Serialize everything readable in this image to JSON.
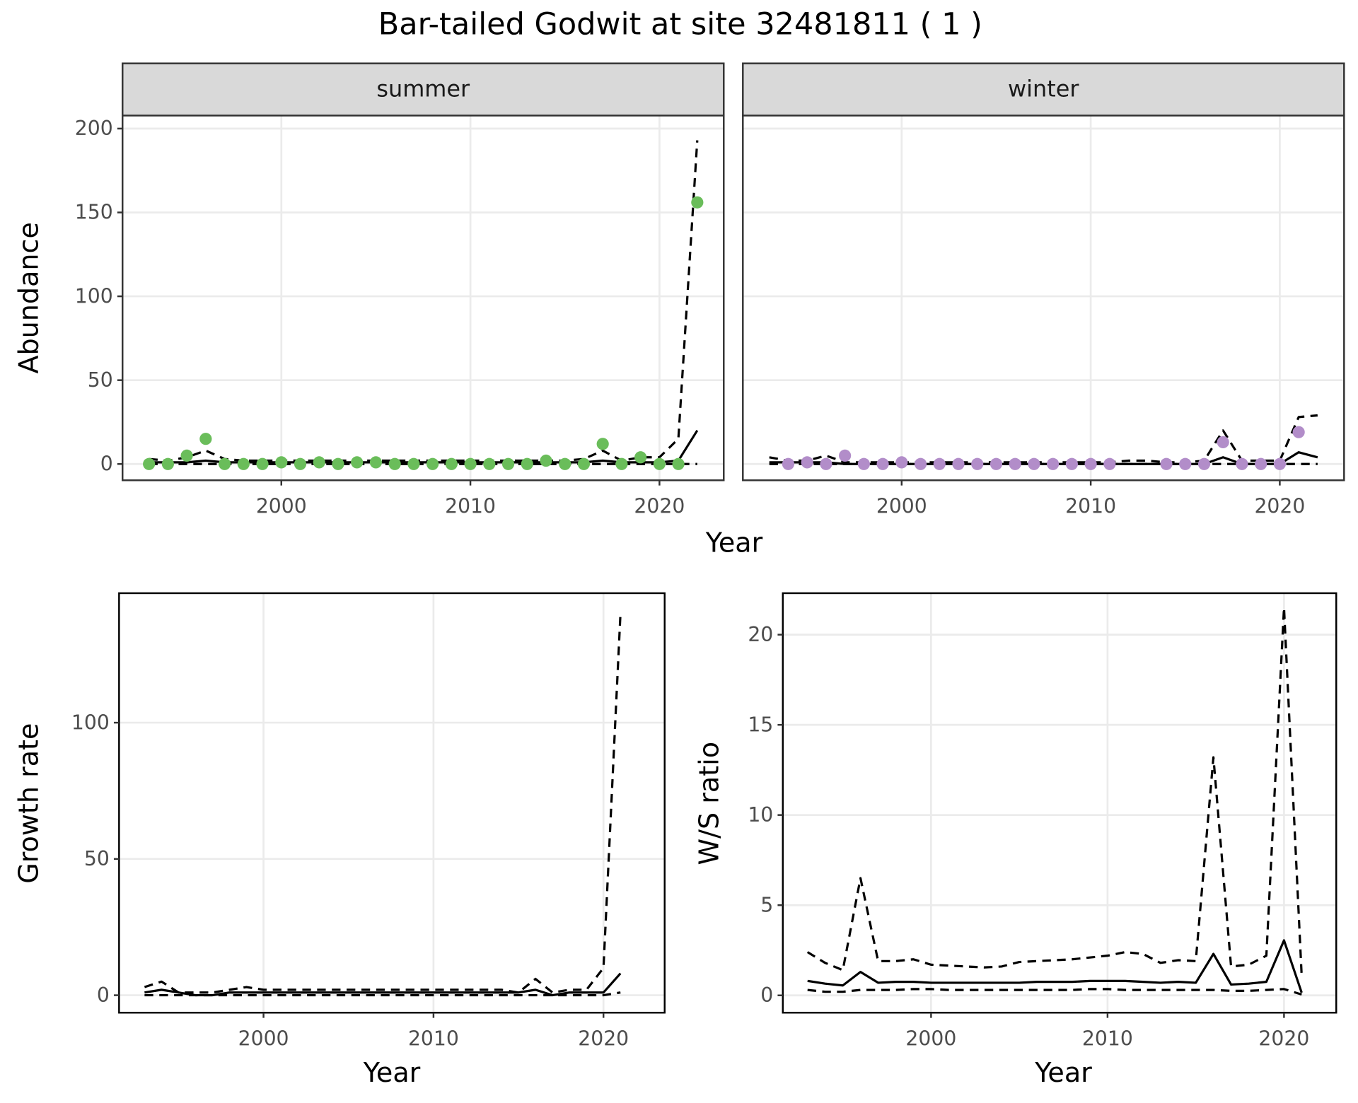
{
  "title": "Bar-tailed Godwit at site 32481811 ( 1 )",
  "chart_data": [
    {
      "type": "line",
      "title": "summer",
      "xlabel": "Year",
      "ylabel": "Abundance",
      "grid": true,
      "xlim": [
        1991.6,
        2023.4
      ],
      "ylim": [
        -9.7,
        207.8
      ],
      "xticks": [
        2000,
        2010,
        2020
      ],
      "yticks": [
        0,
        50,
        100,
        150,
        200
      ],
      "series": [
        {
          "style": "solid",
          "color": "#000000",
          "x": [
            1993,
            1994,
            1995,
            1996,
            1997,
            1998,
            1999,
            2000,
            2001,
            2002,
            2003,
            2004,
            2005,
            2006,
            2007,
            2008,
            2009,
            2010,
            2011,
            2012,
            2013,
            2014,
            2015,
            2016,
            2017,
            2018,
            2019,
            2020,
            2021,
            2022
          ],
          "values": [
            1,
            1,
            1,
            2,
            1,
            1,
            1,
            1,
            1,
            1,
            1,
            1,
            1,
            1,
            1,
            1,
            1,
            1,
            1,
            1,
            1,
            1,
            1,
            1,
            2,
            1,
            1,
            1,
            2,
            20
          ]
        },
        {
          "style": "dashed",
          "color": "#000000",
          "x": [
            1993,
            1994,
            1995,
            1996,
            1997,
            1998,
            1999,
            2000,
            2001,
            2002,
            2003,
            2004,
            2005,
            2006,
            2007,
            2008,
            2009,
            2010,
            2011,
            2012,
            2013,
            2014,
            2015,
            2016,
            2017,
            2018,
            2019,
            2020,
            2021,
            2022
          ],
          "values": [
            3,
            2,
            4,
            8,
            3,
            2,
            2,
            2,
            2,
            2,
            2,
            2,
            2,
            2,
            2,
            2,
            2,
            2,
            2,
            2,
            2,
            2,
            2,
            3,
            8,
            2,
            4,
            4,
            15,
            193
          ]
        },
        {
          "style": "dashed",
          "color": "#000000",
          "x": [
            1993,
            1994,
            1995,
            1996,
            1997,
            1998,
            1999,
            2000,
            2001,
            2002,
            2003,
            2004,
            2005,
            2006,
            2007,
            2008,
            2009,
            2010,
            2011,
            2012,
            2013,
            2014,
            2015,
            2016,
            2017,
            2018,
            2019,
            2020,
            2021,
            2022
          ],
          "values": [
            0,
            0,
            0,
            0,
            0,
            0,
            0,
            0,
            0,
            0,
            0,
            0,
            0,
            0,
            0,
            0,
            0,
            0,
            0,
            0,
            0,
            0,
            0,
            0,
            0,
            0,
            0,
            0,
            0,
            0
          ]
        },
        {
          "style": "points",
          "color": "#6abd5a",
          "x": [
            1993,
            1994,
            1995,
            1996,
            1997,
            1998,
            1999,
            2000,
            2001,
            2002,
            2003,
            2004,
            2005,
            2006,
            2007,
            2008,
            2009,
            2010,
            2011,
            2012,
            2013,
            2014,
            2015,
            2016,
            2017,
            2018,
            2019,
            2020,
            2021,
            2022
          ],
          "values": [
            0,
            0,
            5,
            15,
            0,
            0,
            0,
            1,
            0,
            1,
            0,
            1,
            1,
            0,
            0,
            0,
            0,
            0,
            0,
            0,
            0,
            2,
            0,
            0,
            12,
            0,
            4,
            0,
            0,
            156
          ]
        }
      ]
    },
    {
      "type": "line",
      "title": "winter",
      "grid": true,
      "xlim": [
        1991.6,
        2023.4
      ],
      "xticks": [
        2000,
        2010,
        2020
      ],
      "series": [
        {
          "style": "solid",
          "color": "#000000",
          "x": [
            1993,
            1994,
            1995,
            1996,
            1997,
            1998,
            1999,
            2000,
            2001,
            2002,
            2003,
            2004,
            2005,
            2006,
            2007,
            2008,
            2009,
            2010,
            2011,
            2012,
            2013,
            2014,
            2015,
            2016,
            2017,
            2018,
            2019,
            2020,
            2021,
            2022
          ],
          "values": [
            1,
            1,
            1,
            1,
            0,
            0,
            0,
            0,
            0,
            0,
            0,
            0,
            0,
            0,
            0,
            0,
            0,
            0,
            0,
            0,
            0,
            0,
            0,
            0,
            4,
            0,
            0,
            0,
            7,
            4
          ]
        },
        {
          "style": "dashed",
          "color": "#000000",
          "x": [
            1993,
            1994,
            1995,
            1996,
            1997,
            1998,
            1999,
            2000,
            2001,
            2002,
            2003,
            2004,
            2005,
            2006,
            2007,
            2008,
            2009,
            2010,
            2011,
            2012,
            2013,
            2014,
            2015,
            2016,
            2017,
            2018,
            2019,
            2020,
            2021,
            2022
          ],
          "values": [
            4,
            2,
            2,
            5,
            1,
            1,
            1,
            1,
            1,
            1,
            1,
            1,
            1,
            1,
            1,
            1,
            1,
            1,
            1,
            2,
            2,
            1,
            1,
            2,
            20,
            2,
            2,
            2,
            28,
            29
          ]
        },
        {
          "style": "dashed",
          "color": "#000000",
          "x": [
            1993,
            1994,
            1995,
            1996,
            1997,
            1998,
            1999,
            2000,
            2001,
            2002,
            2003,
            2004,
            2005,
            2006,
            2007,
            2008,
            2009,
            2010,
            2011,
            2012,
            2013,
            2014,
            2015,
            2016,
            2017,
            2018,
            2019,
            2020,
            2021,
            2022
          ],
          "values": [
            0,
            0,
            0,
            0,
            0,
            0,
            0,
            0,
            0,
            0,
            0,
            0,
            0,
            0,
            0,
            0,
            0,
            0,
            0,
            0,
            0,
            0,
            0,
            0,
            0,
            0,
            0,
            0,
            0,
            0
          ]
        },
        {
          "style": "points",
          "color": "#b28dc9",
          "x": [
            1994,
            1995,
            1996,
            1997,
            1998,
            1999,
            2000,
            2001,
            2002,
            2003,
            2004,
            2005,
            2006,
            2007,
            2008,
            2009,
            2010,
            2011,
            2014,
            2015,
            2016,
            2017,
            2018,
            2019,
            2020,
            2021
          ],
          "values": [
            0,
            1,
            0,
            5,
            0,
            0,
            1,
            0,
            0,
            0,
            0,
            0,
            0,
            0,
            0,
            0,
            0,
            0,
            0,
            0,
            0,
            13,
            0,
            0,
            0,
            19
          ]
        }
      ]
    },
    {
      "type": "line",
      "xlabel": "Year",
      "ylabel": "Growth rate",
      "grid": true,
      "xlim": [
        1991.5,
        2023.6
      ],
      "ylim": [
        -6.4,
        147.5
      ],
      "xticks": [
        2000,
        2010,
        2020
      ],
      "yticks": [
        0,
        50,
        100
      ],
      "series": [
        {
          "style": "solid",
          "color": "#000000",
          "x": [
            1993,
            1994,
            1995,
            1996,
            1997,
            1998,
            1999,
            2000,
            2001,
            2002,
            2003,
            2004,
            2005,
            2006,
            2007,
            2008,
            2009,
            2010,
            2011,
            2012,
            2013,
            2014,
            2015,
            2016,
            2017,
            2018,
            2019,
            2020,
            2021
          ],
          "values": [
            1,
            2,
            1,
            0,
            0,
            1,
            1,
            1,
            1,
            1,
            1,
            1,
            1,
            1,
            1,
            1,
            1,
            1,
            1,
            1,
            1,
            1,
            1,
            2,
            0,
            1,
            1,
            1,
            8
          ]
        },
        {
          "style": "dashed",
          "color": "#000000",
          "x": [
            1993,
            1994,
            1995,
            1996,
            1997,
            1998,
            1999,
            2000,
            2001,
            2002,
            2003,
            2004,
            2005,
            2006,
            2007,
            2008,
            2009,
            2010,
            2011,
            2012,
            2013,
            2014,
            2015,
            2016,
            2017,
            2018,
            2019,
            2020,
            2021
          ],
          "values": [
            3,
            5,
            1,
            1,
            1,
            2,
            3,
            2,
            2,
            2,
            2,
            2,
            2,
            2,
            2,
            2,
            2,
            2,
            2,
            2,
            2,
            2,
            1,
            6,
            1,
            2,
            2,
            10,
            140
          ]
        },
        {
          "style": "dashed",
          "color": "#000000",
          "x": [
            1993,
            1994,
            1995,
            1996,
            1997,
            1998,
            1999,
            2000,
            2001,
            2002,
            2003,
            2004,
            2005,
            2006,
            2007,
            2008,
            2009,
            2010,
            2011,
            2012,
            2013,
            2014,
            2015,
            2016,
            2017,
            2018,
            2019,
            2020,
            2021
          ],
          "values": [
            0,
            0,
            0,
            0,
            0,
            0,
            0,
            0,
            0,
            0,
            0,
            0,
            0,
            0,
            0,
            0,
            0,
            0,
            0,
            0,
            0,
            0,
            0,
            0,
            0,
            0,
            0,
            0,
            1
          ]
        }
      ]
    },
    {
      "type": "line",
      "xlabel": "Year",
      "ylabel": "W/S ratio",
      "grid": true,
      "xlim": [
        1991.6,
        2022.96
      ],
      "ylim": [
        -0.96,
        22.3
      ],
      "xticks": [
        2000,
        2010,
        2020
      ],
      "yticks": [
        0,
        5,
        10,
        15,
        20
      ],
      "series": [
        {
          "style": "solid",
          "color": "#000000",
          "x": [
            1993,
            1994,
            1995,
            1996,
            1997,
            1998,
            1999,
            2000,
            2001,
            2002,
            2003,
            2004,
            2005,
            2006,
            2007,
            2008,
            2009,
            2010,
            2011,
            2012,
            2013,
            2014,
            2015,
            2016,
            2017,
            2018,
            2019,
            2020,
            2021
          ],
          "values": [
            0.8,
            0.65,
            0.55,
            1.3,
            0.7,
            0.75,
            0.75,
            0.7,
            0.7,
            0.7,
            0.7,
            0.7,
            0.7,
            0.75,
            0.75,
            0.75,
            0.8,
            0.8,
            0.8,
            0.75,
            0.7,
            0.75,
            0.7,
            2.3,
            0.6,
            0.65,
            0.75,
            3.05,
            0.15
          ]
        },
        {
          "style": "dashed",
          "color": "#000000",
          "x": [
            1993,
            1994,
            1995,
            1996,
            1997,
            1998,
            1999,
            2000,
            2001,
            2002,
            2003,
            2004,
            2005,
            2006,
            2007,
            2008,
            2009,
            2010,
            2011,
            2012,
            2013,
            2014,
            2015,
            2016,
            2017,
            2018,
            2019,
            2020,
            2021
          ],
          "values": [
            2.4,
            1.8,
            1.4,
            6.5,
            1.9,
            1.9,
            2.0,
            1.7,
            1.65,
            1.6,
            1.55,
            1.6,
            1.85,
            1.9,
            1.95,
            2.0,
            2.1,
            2.2,
            2.4,
            2.3,
            1.8,
            1.95,
            1.9,
            13.2,
            1.6,
            1.7,
            2.2,
            21.5,
            1.1
          ]
        },
        {
          "style": "dashed",
          "color": "#000000",
          "x": [
            1993,
            1994,
            1995,
            1996,
            1997,
            1998,
            1999,
            2000,
            2001,
            2002,
            2003,
            2004,
            2005,
            2006,
            2007,
            2008,
            2009,
            2010,
            2011,
            2012,
            2013,
            2014,
            2015,
            2016,
            2017,
            2018,
            2019,
            2020,
            2021
          ],
          "values": [
            0.3,
            0.2,
            0.2,
            0.3,
            0.3,
            0.3,
            0.35,
            0.35,
            0.3,
            0.3,
            0.3,
            0.3,
            0.3,
            0.3,
            0.3,
            0.3,
            0.35,
            0.35,
            0.3,
            0.3,
            0.3,
            0.3,
            0.3,
            0.3,
            0.25,
            0.25,
            0.3,
            0.35,
            0.05
          ]
        }
      ]
    }
  ]
}
